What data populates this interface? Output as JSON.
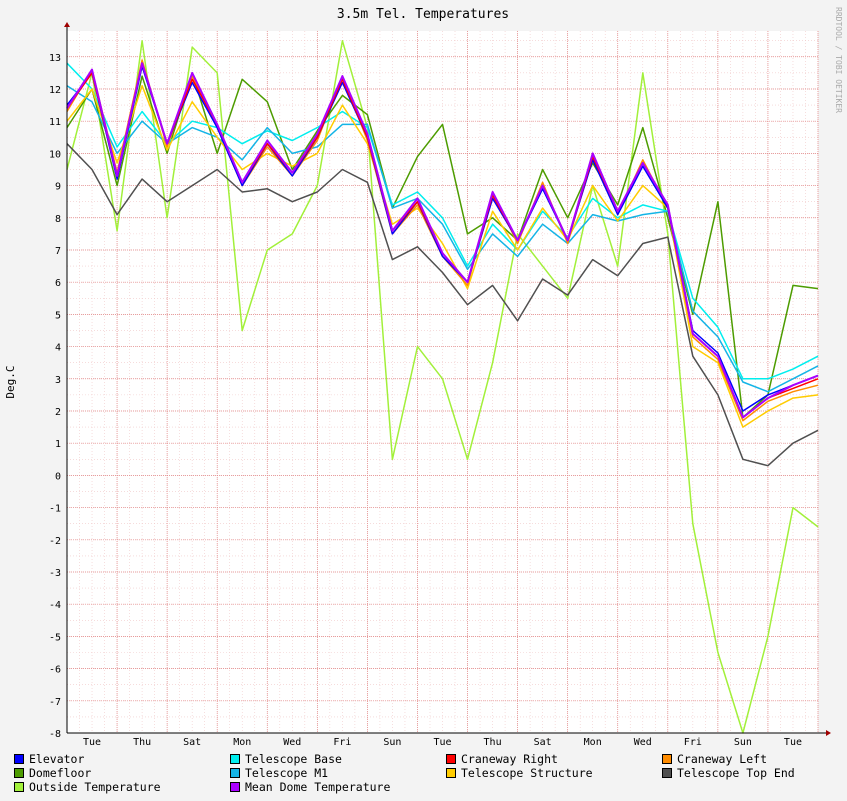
{
  "chart_data": {
    "type": "line",
    "title": "3.5m Tel. Temperatures",
    "ylabel": "Deg.C",
    "watermark": "RRDTOOL / TOBI OETIKER",
    "ylim": [
      -8,
      13.8
    ],
    "yticks": [
      13,
      12,
      11,
      10,
      9,
      8,
      7,
      6,
      5,
      4,
      3,
      2,
      1,
      0,
      -1,
      -2,
      -3,
      -4,
      -5,
      -6,
      -7,
      -8
    ],
    "xlim": [
      0,
      15
    ],
    "xticks": [
      {
        "x": 0.5,
        "label": "Tue"
      },
      {
        "x": 1.5,
        "label": "Thu"
      },
      {
        "x": 2.5,
        "label": "Sat"
      },
      {
        "x": 3.5,
        "label": "Mon"
      },
      {
        "x": 4.5,
        "label": "Wed"
      },
      {
        "x": 5.5,
        "label": "Fri"
      },
      {
        "x": 6.5,
        "label": "Sun"
      },
      {
        "x": 7.5,
        "label": "Tue"
      },
      {
        "x": 8.5,
        "label": "Thu"
      },
      {
        "x": 9.5,
        "label": "Sat"
      },
      {
        "x": 10.5,
        "label": "Mon"
      },
      {
        "x": 11.5,
        "label": "Wed"
      },
      {
        "x": 12.5,
        "label": "Fri"
      },
      {
        "x": 13.5,
        "label": "Sun"
      },
      {
        "x": 14.5,
        "label": "Tue"
      }
    ],
    "grid": true,
    "legend_position": "bottom",
    "x": [
      0.0,
      0.5,
      1.0,
      1.5,
      2.0,
      2.5,
      3.0,
      3.5,
      4.0,
      4.5,
      5.0,
      5.5,
      6.0,
      6.5,
      7.0,
      7.5,
      8.0,
      8.5,
      9.0,
      9.5,
      10.0,
      10.5,
      11.0,
      11.5,
      12.0,
      12.5,
      13.0,
      13.5,
      14.0,
      14.5,
      15.0
    ],
    "series": [
      {
        "name": "Elevator",
        "color": "#0000ff",
        "values": [
          11.5,
          12.5,
          9.2,
          12.7,
          10.3,
          12.2,
          10.8,
          9.0,
          10.3,
          9.3,
          10.5,
          12.2,
          10.5,
          7.5,
          8.5,
          6.8,
          6.0,
          8.6,
          7.3,
          8.9,
          7.3,
          9.8,
          8.1,
          9.6,
          8.3,
          4.5,
          3.8,
          2.0,
          2.5,
          2.8,
          3.1
        ]
      },
      {
        "name": "Telescope Base",
        "color": "#00eeee",
        "values": [
          12.8,
          12.0,
          10.2,
          11.3,
          10.3,
          11.0,
          10.8,
          10.3,
          10.7,
          10.4,
          10.8,
          11.3,
          10.8,
          8.4,
          8.8,
          8.0,
          6.5,
          7.8,
          7.0,
          8.2,
          7.4,
          8.6,
          8.0,
          8.4,
          8.2,
          5.5,
          4.6,
          3.0,
          3.0,
          3.3,
          3.7
        ]
      },
      {
        "name": "Craneway Right",
        "color": "#ff0000",
        "values": [
          11.4,
          12.5,
          9.3,
          12.8,
          10.3,
          12.3,
          10.9,
          9.1,
          10.3,
          9.4,
          10.5,
          12.3,
          10.5,
          7.6,
          8.5,
          6.9,
          6.0,
          8.7,
          7.3,
          9.0,
          7.3,
          9.9,
          8.2,
          9.7,
          8.4,
          4.4,
          3.7,
          1.8,
          2.4,
          2.7,
          3.0
        ]
      },
      {
        "name": "Craneway Left",
        "color": "#ff8c00",
        "values": [
          11.3,
          12.6,
          9.4,
          12.9,
          10.2,
          12.4,
          10.8,
          9.0,
          10.2,
          9.3,
          10.4,
          12.4,
          10.4,
          7.5,
          8.4,
          6.8,
          5.9,
          8.8,
          7.2,
          9.1,
          7.2,
          10.0,
          8.1,
          9.8,
          8.3,
          4.3,
          3.6,
          1.7,
          2.3,
          2.6,
          2.8
        ]
      },
      {
        "name": "Domefloor",
        "color": "#4d9c00",
        "values": [
          10.8,
          12.0,
          9.0,
          12.4,
          10.0,
          12.5,
          10.0,
          12.3,
          11.6,
          9.5,
          10.7,
          11.8,
          11.2,
          8.3,
          9.9,
          10.9,
          7.5,
          8.0,
          7.3,
          9.5,
          8.0,
          9.7,
          8.4,
          10.8,
          8.0,
          5.0,
          8.5,
          1.8,
          2.5,
          5.9,
          5.8
        ]
      },
      {
        "name": "Telescope M1",
        "color": "#14b4e6",
        "values": [
          12.1,
          11.6,
          10.0,
          11.0,
          10.3,
          10.8,
          10.5,
          9.8,
          10.8,
          10.0,
          10.2,
          10.9,
          10.9,
          8.3,
          8.6,
          7.8,
          6.4,
          7.5,
          6.8,
          7.8,
          7.2,
          8.1,
          7.9,
          8.1,
          8.2,
          5.1,
          4.3,
          2.9,
          2.6,
          3.0,
          3.4
        ]
      },
      {
        "name": "Telescope Structure",
        "color": "#ffcc00",
        "values": [
          11.0,
          12.0,
          9.7,
          12.1,
          10.1,
          11.6,
          10.5,
          9.5,
          10.0,
          9.6,
          10.0,
          11.5,
          10.3,
          7.8,
          8.3,
          7.2,
          5.8,
          8.2,
          7.0,
          8.3,
          7.3,
          9.0,
          7.9,
          9.0,
          8.3,
          4.0,
          3.5,
          1.5,
          2.0,
          2.4,
          2.5
        ]
      },
      {
        "name": "Telescope Top End",
        "color": "#505050",
        "values": [
          10.3,
          9.5,
          8.1,
          9.2,
          8.5,
          9.0,
          9.5,
          8.8,
          8.9,
          8.5,
          8.8,
          9.5,
          9.1,
          6.7,
          7.1,
          6.3,
          5.3,
          5.9,
          4.8,
          6.1,
          5.6,
          6.7,
          6.2,
          7.2,
          7.4,
          3.7,
          2.5,
          0.5,
          0.3,
          1.0,
          1.4
        ]
      },
      {
        "name": "Outside Temperature",
        "color": "#a2f03a",
        "values": [
          9.5,
          12.5,
          7.6,
          13.5,
          8.0,
          13.3,
          12.5,
          4.5,
          7.0,
          7.5,
          9.0,
          13.5,
          10.8,
          0.5,
          4.0,
          3.0,
          0.5,
          3.5,
          7.5,
          6.5,
          5.5,
          9.0,
          6.5,
          12.5,
          7.5,
          -1.5,
          -5.5,
          -8.0,
          -5.0,
          -1.0,
          -1.6
        ]
      },
      {
        "name": "Mean Dome Temperature",
        "color": "#aa00ff",
        "values": [
          11.4,
          12.6,
          9.3,
          12.8,
          10.3,
          12.5,
          10.9,
          9.1,
          10.4,
          9.4,
          10.6,
          12.4,
          10.6,
          7.6,
          8.6,
          6.9,
          6.0,
          8.8,
          7.3,
          9.0,
          7.3,
          10.0,
          8.2,
          9.7,
          8.4,
          4.4,
          3.7,
          1.8,
          2.4,
          2.8,
          3.1
        ]
      }
    ]
  }
}
